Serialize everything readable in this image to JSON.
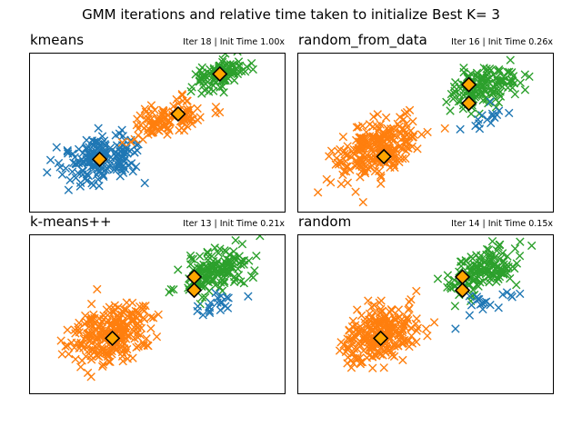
{
  "figure": {
    "title": "GMM iterations and relative time taken to initialize Best K= 3"
  },
  "colors": {
    "cluster_blue": "#1f77b4",
    "cluster_orange": "#ff7f0e",
    "cluster_green": "#2ca02c",
    "center_marker": "#ffa500",
    "center_edge": "#000000"
  },
  "chart_data": [
    {
      "type": "scatter",
      "title": "kmeans",
      "subtitle": "Iter 18 | Init Time 1.00x",
      "xlim": [
        -4,
        4
      ],
      "ylim": [
        -3,
        3
      ],
      "clusters": [
        {
          "color": "blue",
          "center": [
            -1.8,
            -1.0
          ],
          "spread": [
            1.05,
            0.72
          ],
          "count": 180
        },
        {
          "color": "orange",
          "center": [
            0.3,
            0.5
          ],
          "spread": [
            1.0,
            0.55
          ],
          "count": 110
        },
        {
          "color": "green",
          "center": [
            2.0,
            2.2
          ],
          "spread": [
            0.7,
            0.45
          ],
          "count": 110
        }
      ],
      "centers": [
        [
          -1.8,
          -1.0
        ],
        [
          0.65,
          0.7
        ],
        [
          1.95,
          2.2
        ]
      ]
    },
    {
      "type": "scatter",
      "title": "random_from_data",
      "subtitle": "Iter 16 | Init Time 0.26x",
      "xlim": [
        -4,
        4
      ],
      "ylim": [
        -3,
        3
      ],
      "clusters": [
        {
          "color": "orange",
          "center": [
            -1.5,
            -0.6
          ],
          "spread": [
            1.1,
            0.95
          ],
          "count": 260
        },
        {
          "color": "green",
          "center": [
            1.8,
            1.7
          ],
          "spread": [
            0.9,
            0.75
          ],
          "count": 150
        },
        {
          "color": "blue",
          "center": [
            1.9,
            0.5
          ],
          "spread": [
            0.6,
            0.3
          ],
          "count": 15
        }
      ],
      "centers": [
        [
          -1.3,
          -0.9
        ],
        [
          1.35,
          1.8
        ],
        [
          1.35,
          1.1
        ]
      ]
    },
    {
      "type": "scatter",
      "title": "k-means++",
      "subtitle": "Iter 13 | Init Time 0.21x",
      "xlim": [
        -4,
        4
      ],
      "ylim": [
        -3,
        3
      ],
      "clusters": [
        {
          "color": "orange",
          "center": [
            -1.4,
            -0.7
          ],
          "spread": [
            1.1,
            0.95
          ],
          "count": 260
        },
        {
          "color": "green",
          "center": [
            1.8,
            1.6
          ],
          "spread": [
            0.9,
            0.75
          ],
          "count": 150
        },
        {
          "color": "blue",
          "center": [
            1.9,
            0.4
          ],
          "spread": [
            0.6,
            0.35
          ],
          "count": 20
        }
      ],
      "centers": [
        [
          -1.4,
          -0.9
        ],
        [
          1.15,
          1.4
        ],
        [
          1.15,
          0.9
        ]
      ]
    },
    {
      "type": "scatter",
      "title": "random",
      "subtitle": "Iter 14 | Init Time 0.15x",
      "xlim": [
        -4,
        4
      ],
      "ylim": [
        -3,
        3
      ],
      "clusters": [
        {
          "color": "orange",
          "center": [
            -1.4,
            -0.7
          ],
          "spread": [
            1.1,
            0.95
          ],
          "count": 260
        },
        {
          "color": "green",
          "center": [
            1.8,
            1.6
          ],
          "spread": [
            0.9,
            0.75
          ],
          "count": 150
        },
        {
          "color": "blue",
          "center": [
            1.9,
            0.4
          ],
          "spread": [
            0.6,
            0.35
          ],
          "count": 20
        }
      ],
      "centers": [
        [
          -1.4,
          -0.9
        ],
        [
          1.15,
          1.4
        ],
        [
          1.15,
          0.9
        ]
      ]
    }
  ]
}
